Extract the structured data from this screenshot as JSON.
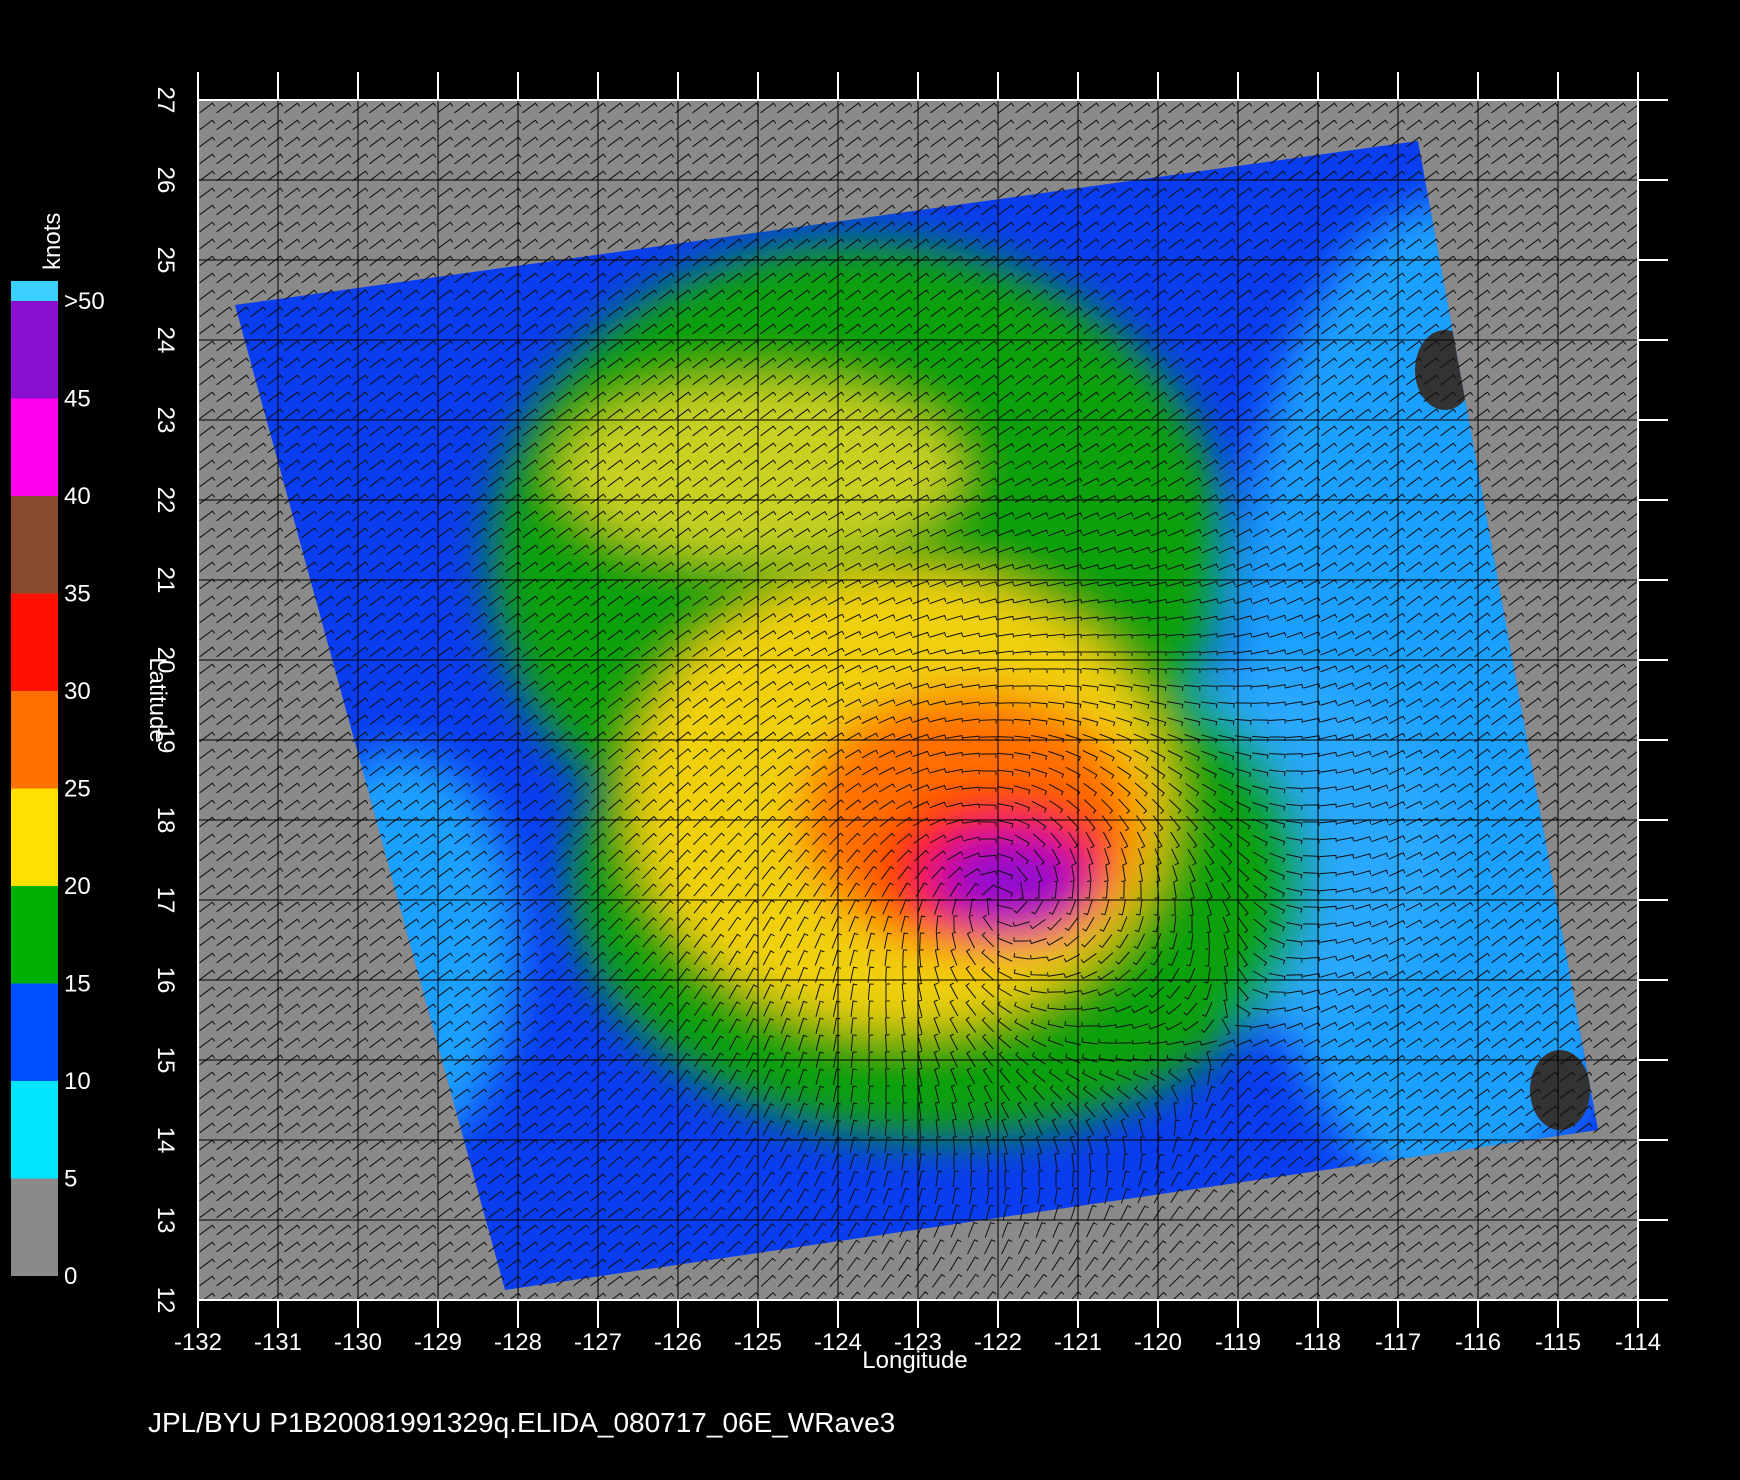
{
  "map": {
    "x_axis": {
      "label": "Longitude",
      "ticks": [
        -132,
        -131,
        -130,
        -129,
        -128,
        -127,
        -126,
        -125,
        -124,
        -123,
        -122,
        -121,
        -120,
        -119,
        -118,
        -117,
        -116,
        -115,
        -114
      ],
      "lim": [
        -132,
        -114
      ]
    },
    "y_axis": {
      "label": "Latitude",
      "ticks": [
        12,
        13,
        14,
        15,
        16,
        17,
        18,
        19,
        20,
        21,
        22,
        23,
        24,
        25,
        26,
        27
      ],
      "lim": [
        12,
        27
      ]
    },
    "colorbar": {
      "unit": "knots",
      "lim": [
        0,
        50
      ],
      "ticks": [
        0,
        5,
        10,
        15,
        20,
        25,
        30,
        35,
        40,
        45,
        {
          "value": 50,
          "label": ">50"
        }
      ],
      "colors": [
        "#8a8a8a",
        "#00e6ff",
        "#0050ff",
        "#00b000",
        "#ffe000",
        "#ff7000",
        "#ff1000",
        "#8a4a30",
        "#ff00f0",
        "#8a10d0"
      ]
    },
    "footer": "JPL/BYU  P1B20081991329q.ELIDA_080717_06E_WRave3"
  }
}
